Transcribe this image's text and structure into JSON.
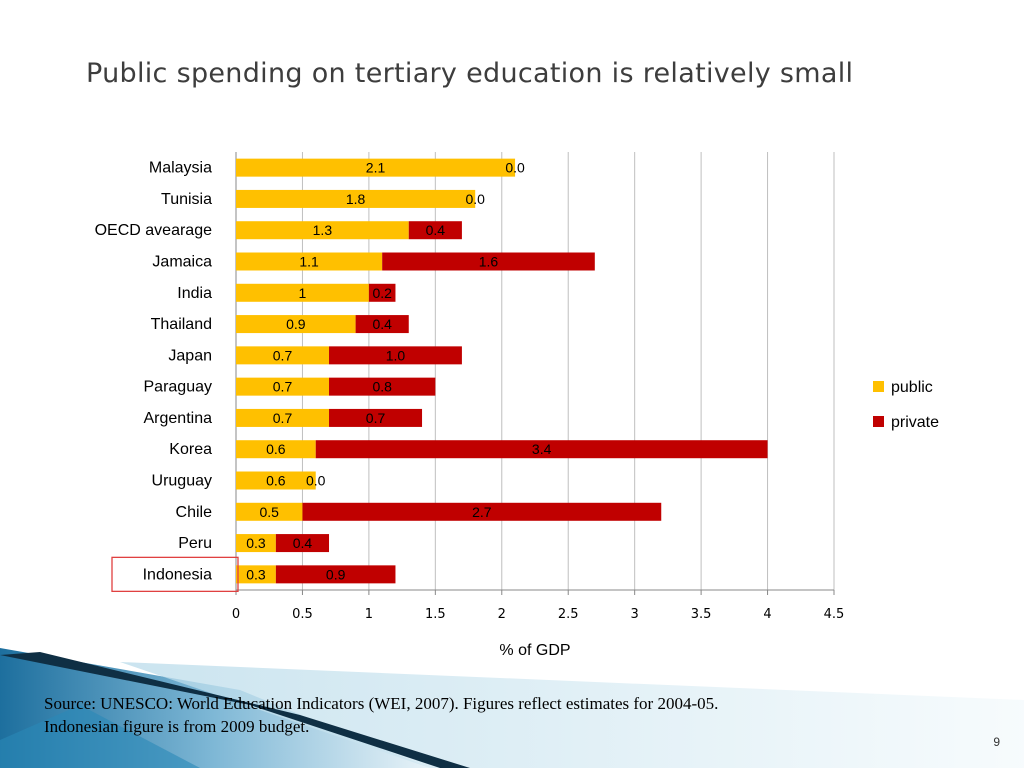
{
  "slide": {
    "title": "Public spending on tertiary education is relatively small",
    "source_line1": "Source: UNESCO: World Education Indicators (WEI, 2007). Figures reflect estimates for 2004-05.",
    "source_line2": "Indonesian figure is from 2009 budget.",
    "page_number": "9"
  },
  "chart_data": {
    "type": "bar",
    "orientation": "horizontal",
    "stacked": true,
    "categories": [
      "Malaysia",
      "Tunisia",
      "OECD avearage",
      "Jamaica",
      "India",
      "Thailand",
      "Japan",
      "Paraguay",
      "Argentina",
      "Korea",
      "Uruguay",
      "Chile",
      "Peru",
      "Indonesia"
    ],
    "series": [
      {
        "name": "public",
        "color": "#FFC000",
        "values": [
          2.1,
          1.8,
          1.3,
          1.1,
          1.0,
          0.9,
          0.7,
          0.7,
          0.7,
          0.6,
          0.6,
          0.5,
          0.3,
          0.3
        ],
        "labels": [
          "2.1",
          "1.8",
          "1.3",
          "1.1",
          "1",
          "0.9",
          "0.7",
          "0.7",
          "0.7",
          "0.6",
          "0.6",
          "0.5",
          "0.3",
          "0.3"
        ]
      },
      {
        "name": "private",
        "color": "#C00000",
        "values": [
          0.0,
          0.0,
          0.4,
          1.6,
          0.2,
          0.4,
          1.0,
          0.8,
          0.7,
          3.4,
          0.0,
          2.7,
          0.4,
          0.9
        ],
        "labels": [
          "0.0",
          "0.0",
          "0.4",
          "1.6",
          "0.2",
          "0.4",
          "1.0",
          "0.8",
          "0.7",
          "3.4",
          "0.0",
          "2.7",
          "0.4",
          "0.9"
        ]
      }
    ],
    "xlabel": "% of GDP",
    "xlim": [
      0,
      4.5
    ],
    "xticks": [
      "0",
      "0.5",
      "1",
      "1.5",
      "2",
      "2.5",
      "3",
      "3.5",
      "4",
      "4.5"
    ],
    "grid": true,
    "legend_position": "right",
    "highlighted_category": "Indonesia",
    "highlight_color": "#E04040"
  }
}
